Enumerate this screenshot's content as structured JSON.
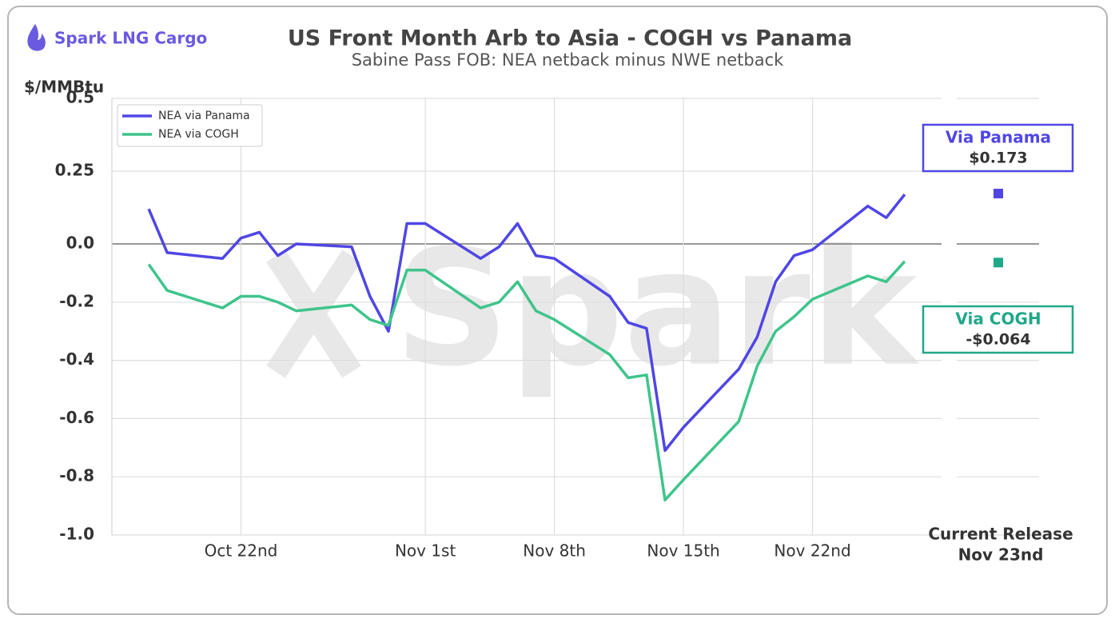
{
  "brand": "Spark LNG Cargo",
  "chart_data": {
    "type": "line",
    "title": "US Front Month Arb to Asia - COGH vs Panama",
    "subtitle": "Sabine Pass FOB: NEA netback minus NWE netback",
    "y_label": "$/MMBtu",
    "watermark": "Spark",
    "x": [
      "Oct 17",
      "Oct 18",
      "Oct 21",
      "Oct 22",
      "Oct 23",
      "Oct 24",
      "Oct 25",
      "Oct 28",
      "Oct 29",
      "Oct 30",
      "Oct 31",
      "Nov 1",
      "Nov 4",
      "Nov 5",
      "Nov 6",
      "Nov 7",
      "Nov 8",
      "Nov 11",
      "Nov 12",
      "Nov 13",
      "Nov 14",
      "Nov 15",
      "Nov 18",
      "Nov 19",
      "Nov 20",
      "Nov 21",
      "Nov 22",
      "Nov 25",
      "Nov 26",
      "Nov 27"
    ],
    "series": [
      {
        "name": "NEA via Panama",
        "color": "#5046e4",
        "values": [
          0.12,
          -0.03,
          -0.05,
          0.02,
          0.04,
          -0.04,
          0.0,
          -0.01,
          -0.18,
          -0.3,
          0.07,
          0.07,
          -0.05,
          -0.01,
          0.07,
          -0.04,
          -0.05,
          -0.18,
          -0.27,
          -0.29,
          -0.71,
          -0.63,
          -0.43,
          -0.32,
          -0.13,
          -0.04,
          -0.02,
          0.13,
          0.09,
          0.17
        ]
      },
      {
        "name": "NEA via COGH",
        "color": "#3fc48c",
        "values": [
          -0.07,
          -0.16,
          -0.22,
          -0.18,
          -0.18,
          -0.2,
          -0.23,
          -0.21,
          -0.26,
          -0.28,
          -0.09,
          -0.09,
          -0.22,
          -0.2,
          -0.13,
          -0.23,
          -0.26,
          -0.38,
          -0.46,
          -0.45,
          -0.88,
          -0.81,
          -0.61,
          -0.42,
          -0.3,
          -0.25,
          -0.19,
          -0.11,
          -0.13,
          -0.06
        ]
      }
    ],
    "xlim": [
      "Oct 15",
      "Nov 29"
    ],
    "xticks": [
      {
        "value": "Oct 22",
        "label": "Oct 22nd"
      },
      {
        "value": "Nov 1",
        "label": "Nov 1st"
      },
      {
        "value": "Nov 8",
        "label": "Nov 8th"
      },
      {
        "value": "Nov 15",
        "label": "Nov 15th"
      },
      {
        "value": "Nov 22",
        "label": "Nov 22nd"
      }
    ],
    "ylim": [
      -1,
      0.5
    ],
    "yticks": [
      0.5,
      0.25,
      {
        "value": 0,
        "label": "0.0"
      },
      -0.2,
      -0.4,
      -0.6,
      -0.8,
      {
        "value": -1,
        "label": "-1.0"
      }
    ],
    "grid": true,
    "legend": "upper left",
    "current": [
      {
        "name": "Via Panama",
        "value": 0.173,
        "value_label": "$0.173",
        "color": "#5046e4"
      },
      {
        "name": "Via COGH",
        "value": -0.064,
        "value_label": "-$0.064",
        "color": "#1fa888"
      }
    ],
    "release_label": [
      "Current Release",
      "Nov 23nd"
    ]
  }
}
